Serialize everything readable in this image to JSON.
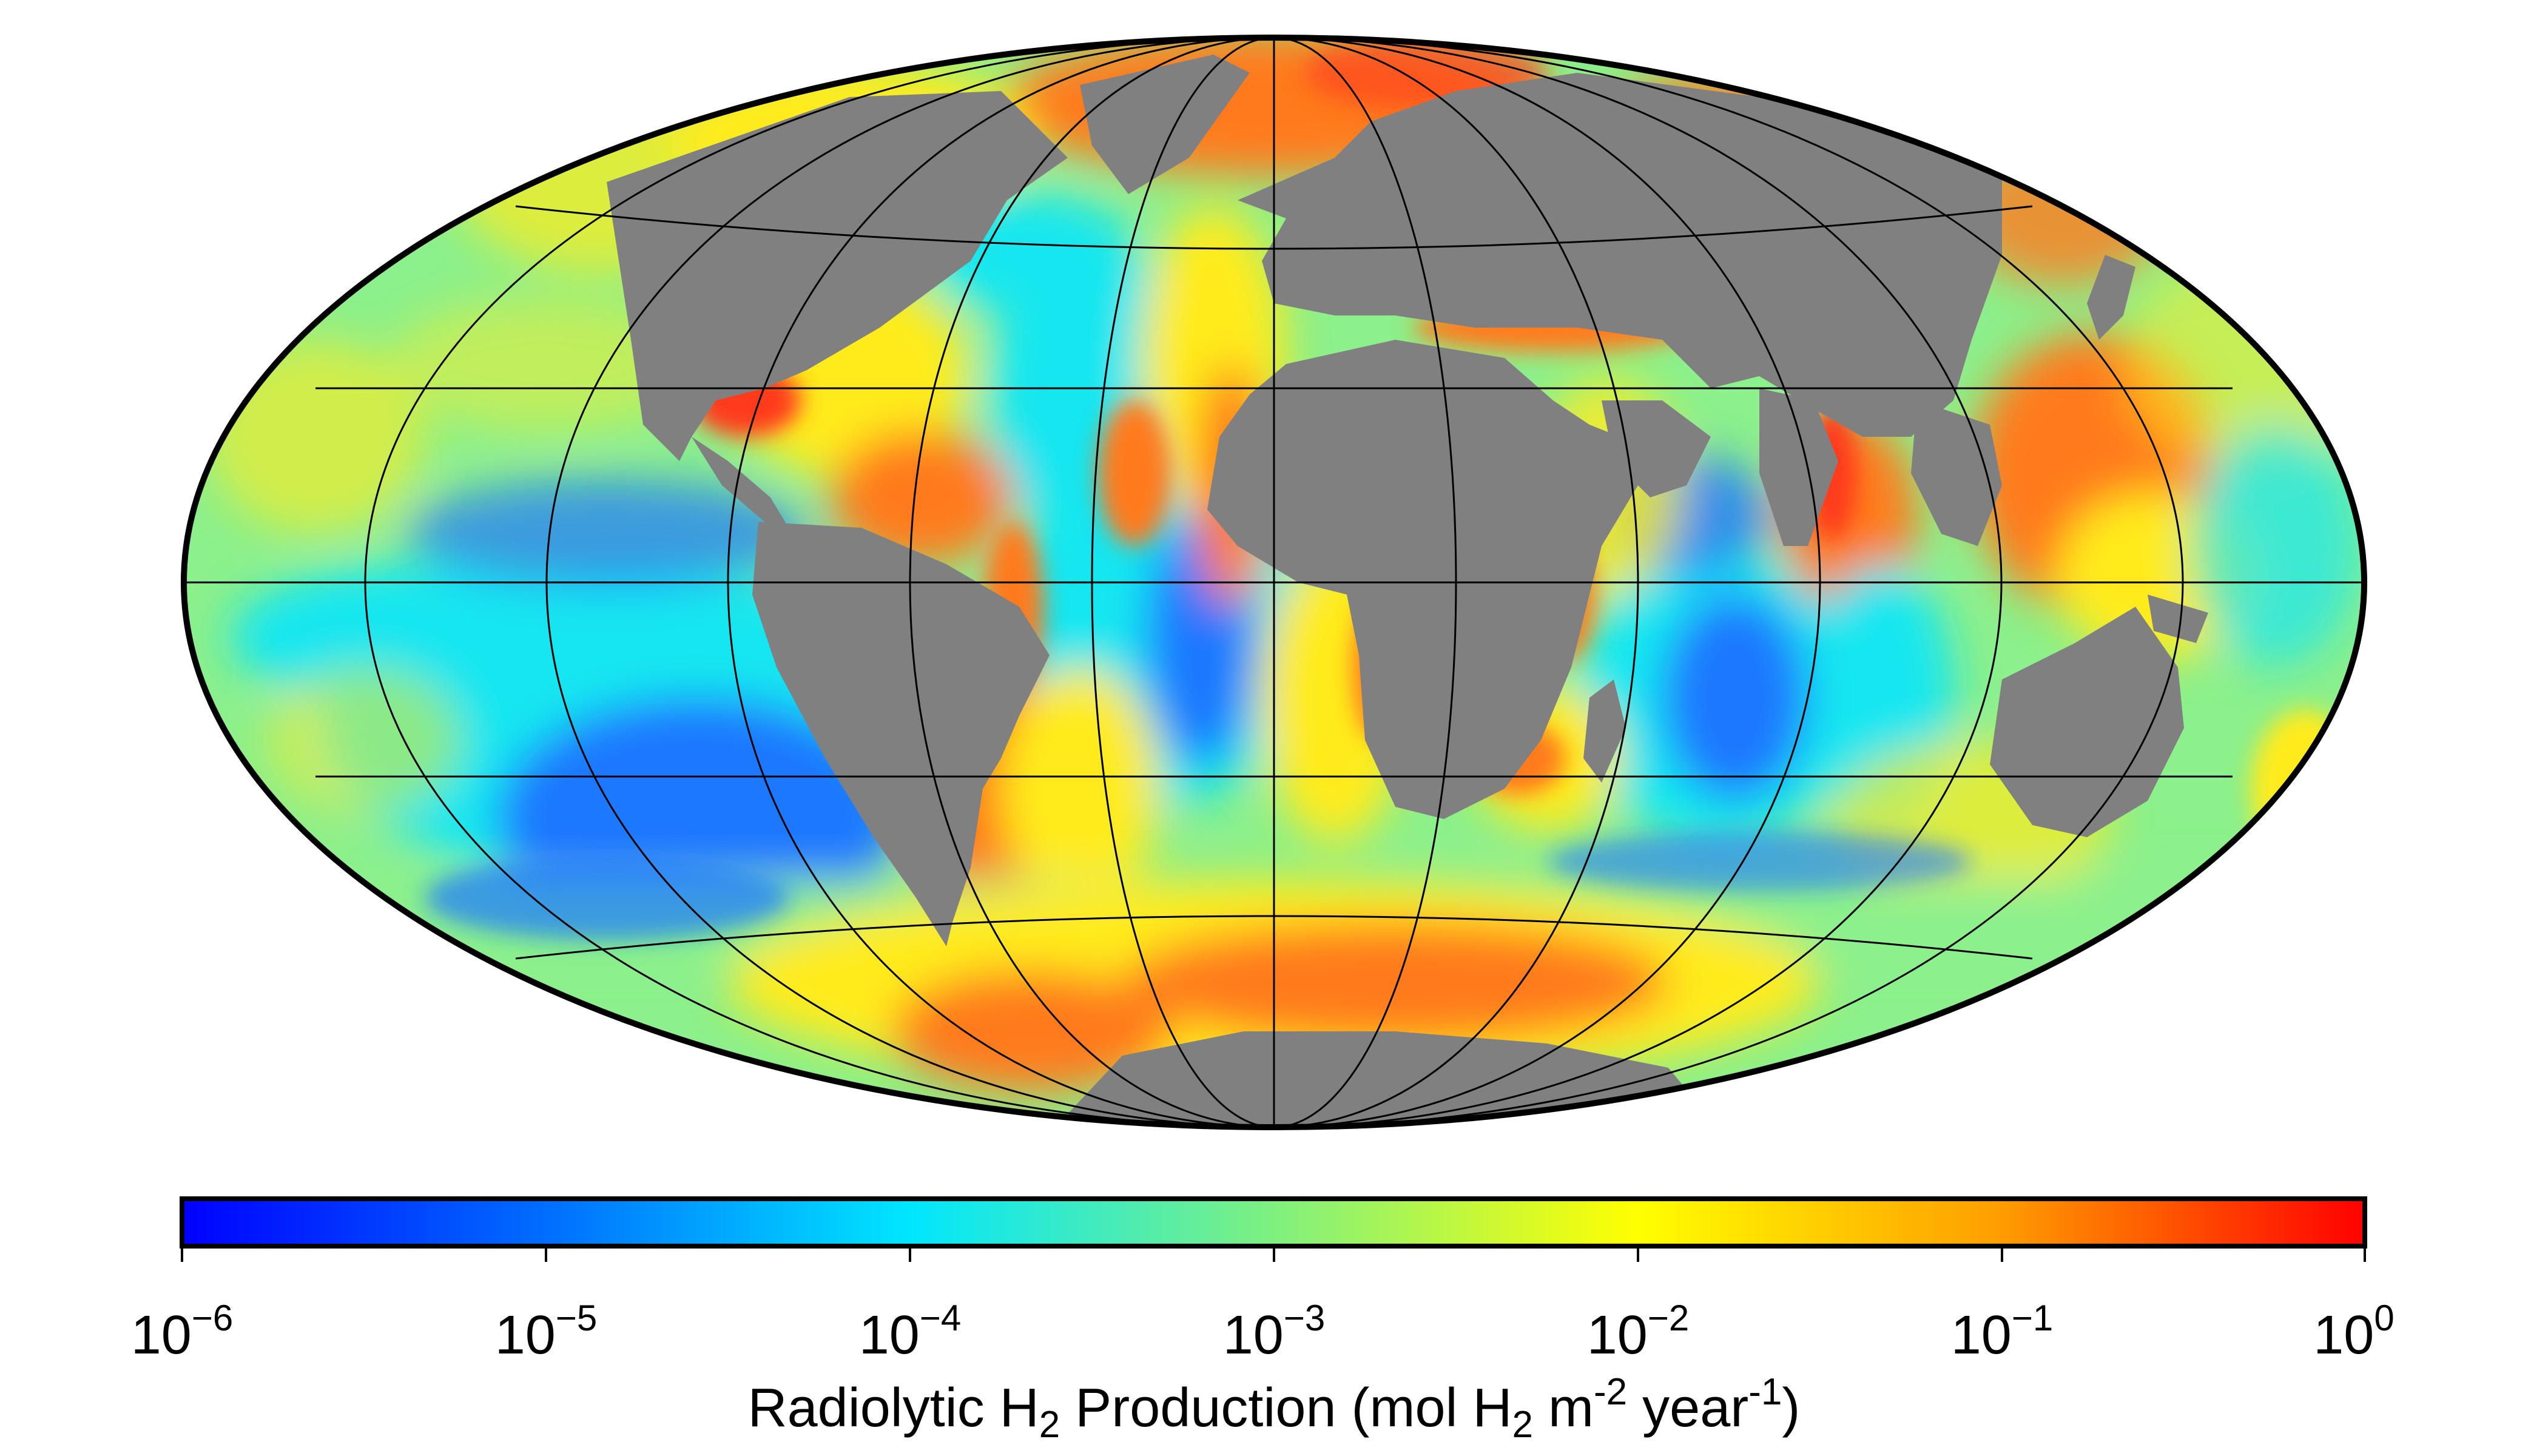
{
  "map": {
    "projection": "Hammer / Mollweide equal-area (global)",
    "graticule": true,
    "land_color": "#808080",
    "outline_color": "#000000"
  },
  "colorbar": {
    "scale": "log",
    "range": [
      1e-06,
      1
    ],
    "colormap": [
      "#0000ff",
      "#0070ff",
      "#00e6ff",
      "#7ff07f",
      "#ffff00",
      "#ff9d00",
      "#ff0000"
    ],
    "ticks": [
      {
        "base": "10",
        "exp": "−6"
      },
      {
        "base": "10",
        "exp": "−5"
      },
      {
        "base": "10",
        "exp": "−4"
      },
      {
        "base": "10",
        "exp": "−3"
      },
      {
        "base": "10",
        "exp": "−2"
      },
      {
        "base": "10",
        "exp": "−1"
      },
      {
        "base": "10",
        "exp": "0"
      }
    ],
    "title": {
      "part1": "Radiolytic H",
      "sub1": "2",
      "part2": " Production (mol H",
      "sub2": "2",
      "part3": " m",
      "sup1": "-2",
      "part4": " year",
      "sup2": "-1",
      "part5": ")"
    }
  },
  "colors": {
    "ocean_base": "#8cf08c",
    "deep_blue": "#1e78ff",
    "cyan": "#19e6f0",
    "yellow": "#ffeb1e",
    "orange": "#ff7a1e",
    "red": "#ff3a1a"
  }
}
